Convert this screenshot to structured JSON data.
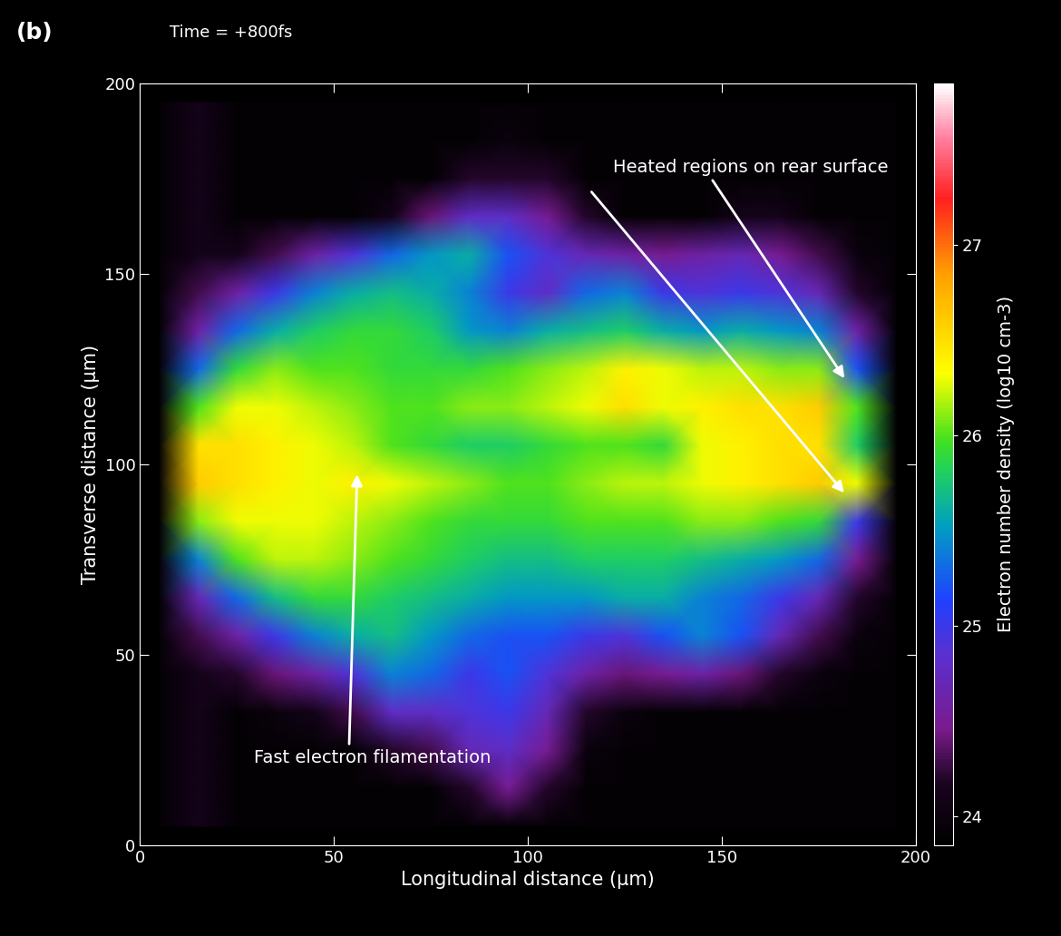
{
  "chart_data": {
    "type": "heatmap",
    "panel_label": "(b)",
    "title": "Time = +800fs",
    "x_label": "Longitudinal distance (µm)",
    "y_label": "Transverse distance (µm)",
    "annotations": [
      "Heated regions on rear surface",
      "Fast electron filamentation"
    ],
    "xlim": [
      0,
      200
    ],
    "ylim": [
      0,
      200
    ],
    "xticks": [
      0,
      50,
      100,
      150,
      200
    ],
    "yticks": [
      0,
      50,
      100,
      150,
      200
    ],
    "x": [
      5,
      15,
      25,
      35,
      45,
      55,
      65,
      75,
      85,
      95,
      105,
      115,
      125,
      135,
      145,
      155,
      165,
      175,
      185,
      195
    ],
    "y": [
      5,
      15,
      25,
      35,
      45,
      55,
      65,
      75,
      85,
      95,
      105,
      115,
      125,
      135,
      145,
      155,
      165,
      175,
      185,
      195
    ],
    "cells": [
      [
        23.9,
        24.1,
        23.9,
        23.9,
        23.9,
        23.9,
        23.9,
        23.9,
        23.9,
        23.9,
        23.9,
        23.9,
        23.9,
        23.9,
        23.9,
        23.9,
        23.9,
        23.9,
        23.9,
        23.9
      ],
      [
        23.9,
        24.1,
        23.9,
        23.9,
        23.9,
        23.9,
        23.9,
        23.9,
        24.2,
        24.5,
        24.2,
        23.9,
        23.9,
        23.9,
        23.9,
        23.9,
        23.9,
        23.9,
        23.9,
        23.9
      ],
      [
        23.9,
        24.1,
        23.9,
        23.9,
        23.9,
        23.9,
        24.2,
        24.3,
        24.7,
        24.8,
        24.5,
        24.0,
        23.9,
        23.9,
        23.9,
        23.9,
        23.9,
        23.9,
        23.9,
        23.9
      ],
      [
        23.9,
        24.1,
        23.9,
        24.0,
        24.1,
        24.3,
        24.8,
        24.8,
        24.9,
        25.0,
        24.7,
        24.2,
        24.0,
        23.9,
        23.9,
        23.9,
        23.9,
        23.9,
        23.9,
        23.9
      ],
      [
        23.9,
        24.1,
        24.2,
        24.4,
        24.6,
        24.9,
        25.4,
        25.3,
        25.0,
        25.2,
        24.9,
        24.6,
        24.4,
        24.5,
        24.6,
        24.4,
        24.2,
        24.0,
        23.9,
        23.9
      ],
      [
        23.9,
        24.3,
        24.6,
        25.0,
        25.4,
        25.6,
        25.7,
        25.5,
        25.3,
        25.2,
        25.2,
        25.0,
        24.9,
        25.2,
        25.4,
        25.2,
        24.7,
        24.3,
        24.0,
        23.9
      ],
      [
        23.9,
        24.7,
        25.3,
        25.7,
        25.9,
        25.9,
        25.8,
        25.7,
        25.6,
        25.5,
        25.5,
        25.5,
        25.6,
        25.6,
        25.4,
        25.3,
        25.0,
        24.7,
        24.2,
        23.9
      ],
      [
        23.9,
        25.4,
        26.0,
        26.2,
        26.2,
        26.1,
        26.0,
        25.9,
        25.8,
        25.7,
        25.7,
        25.8,
        25.8,
        25.8,
        25.7,
        25.6,
        25.5,
        25.3,
        24.5,
        23.9
      ],
      [
        23.9,
        26.1,
        26.3,
        26.3,
        26.3,
        26.2,
        26.1,
        26.0,
        25.9,
        25.9,
        25.9,
        26.0,
        26.0,
        26.0,
        26.1,
        26.1,
        26.0,
        25.9,
        25.0,
        23.9
      ],
      [
        23.9,
        26.6,
        26.5,
        26.4,
        26.3,
        26.4,
        26.3,
        26.2,
        26.1,
        26.0,
        26.0,
        26.1,
        26.2,
        26.2,
        26.3,
        26.4,
        26.5,
        26.6,
        26.3,
        23.9
      ],
      [
        23.9,
        26.5,
        26.5,
        26.4,
        26.3,
        26.2,
        26.0,
        25.9,
        25.8,
        25.8,
        25.9,
        26.0,
        26.0,
        25.9,
        26.3,
        26.4,
        26.5,
        26.5,
        25.8,
        23.9
      ],
      [
        23.9,
        26.0,
        26.3,
        26.3,
        26.2,
        26.1,
        26.0,
        26.0,
        26.1,
        26.1,
        26.2,
        26.3,
        26.5,
        26.3,
        26.4,
        26.5,
        26.5,
        26.6,
        26.0,
        23.9
      ],
      [
        23.9,
        25.3,
        25.9,
        26.1,
        26.0,
        26.0,
        25.9,
        25.9,
        25.9,
        26.0,
        26.1,
        26.2,
        26.4,
        26.3,
        26.2,
        26.2,
        26.1,
        26.1,
        25.2,
        23.9
      ],
      [
        23.9,
        24.6,
        25.3,
        25.6,
        25.8,
        25.9,
        25.9,
        25.8,
        25.5,
        25.4,
        25.6,
        25.7,
        25.8,
        25.6,
        25.5,
        25.6,
        25.5,
        25.4,
        24.6,
        23.9
      ],
      [
        23.9,
        24.3,
        24.6,
        25.0,
        25.4,
        25.6,
        25.7,
        25.6,
        25.4,
        25.0,
        24.8,
        25.3,
        25.4,
        25.0,
        24.9,
        25.0,
        24.9,
        24.7,
        24.2,
        23.9
      ],
      [
        23.9,
        24.1,
        24.1,
        24.3,
        24.6,
        24.9,
        25.3,
        25.5,
        25.6,
        25.2,
        24.9,
        24.7,
        24.6,
        24.5,
        24.6,
        24.7,
        24.5,
        24.3,
        24.0,
        23.9
      ],
      [
        23.9,
        24.1,
        23.9,
        23.9,
        23.9,
        23.9,
        24.1,
        24.4,
        24.8,
        24.8,
        24.5,
        24.2,
        23.9,
        23.9,
        23.9,
        24.1,
        24.1,
        23.9,
        23.9,
        23.9
      ],
      [
        23.9,
        24.1,
        23.9,
        23.9,
        23.9,
        23.9,
        23.9,
        23.9,
        24.2,
        24.2,
        24.2,
        23.9,
        23.9,
        23.9,
        23.9,
        23.9,
        23.9,
        23.9,
        23.9,
        23.9
      ],
      [
        23.9,
        24.1,
        23.9,
        23.9,
        23.9,
        23.9,
        23.9,
        23.9,
        23.9,
        24.0,
        23.9,
        23.9,
        23.9,
        23.9,
        23.9,
        23.9,
        23.9,
        23.9,
        23.9,
        23.9
      ],
      [
        23.9,
        24.1,
        23.9,
        23.9,
        23.9,
        23.9,
        23.9,
        23.9,
        23.9,
        23.9,
        23.9,
        23.9,
        23.9,
        23.9,
        23.9,
        23.9,
        23.9,
        23.9,
        23.9,
        23.9
      ]
    ],
    "colorbar": {
      "range": [
        23.85,
        27.85
      ],
      "ticks": [
        24,
        25,
        26,
        27
      ],
      "label": "Electron number density (log10 cm-3)"
    }
  }
}
